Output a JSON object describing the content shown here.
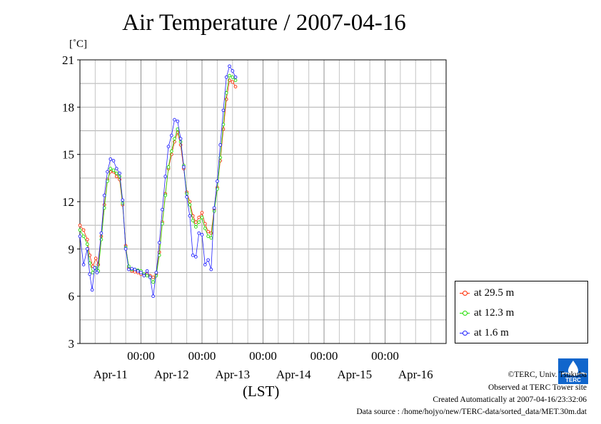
{
  "title": "Air Temperature / 2007-04-16",
  "unit_label": "[˚C]",
  "x_axis_label": "(LST)",
  "legend": [
    {
      "label": "at 29.5 m",
      "color": "#ff2a00"
    },
    {
      "label": "at 12.3 m",
      "color": "#22dd00"
    },
    {
      "label": "at 1.6 m",
      "color": "#2222ff"
    }
  ],
  "footer": {
    "copyright": "©TERC, Univ. Tsukuba",
    "observed": "Observed at TERC Tower site",
    "created": "Created Automatically at 2007-04-16/23:32:06",
    "source": "Data source : /home/hojyo/new/TERC-data/sorted_data/MET.30m.dat"
  },
  "logo_text": "TERC",
  "chart_data": {
    "type": "line",
    "title": "Air Temperature / 2007-04-16",
    "ylabel": "[˚C]",
    "xlabel": "(LST)",
    "ylim": [
      3,
      21
    ],
    "y_ticks": [
      3,
      6,
      9,
      12,
      15,
      18,
      21
    ],
    "xlim": [
      -1.0,
      5.0
    ],
    "x_unit": "days from 2007-04-11 00:00",
    "time_ticks": [
      "00:00",
      "00:00",
      "00:00",
      "00:00",
      "00:00"
    ],
    "date_labels": [
      "Apr-11",
      "Apr-12",
      "Apr-13",
      "Apr-14",
      "Apr-15",
      "Apr-16"
    ],
    "grid": true,
    "legend_position": "right",
    "series": [
      {
        "name": "at 29.5 m",
        "color": "#ff2a00",
        "points": [
          [
            -1.0,
            10.5
          ],
          [
            -0.94,
            10.2
          ],
          [
            -0.88,
            9.6
          ],
          [
            -0.84,
            8.6
          ],
          [
            -0.79,
            7.9
          ],
          [
            -0.74,
            8.4
          ],
          [
            -0.7,
            8.0
          ],
          [
            -0.65,
            9.8
          ],
          [
            -0.6,
            11.8
          ],
          [
            -0.55,
            13.4
          ],
          [
            -0.5,
            13.9
          ],
          [
            -0.45,
            13.9
          ],
          [
            -0.4,
            13.6
          ],
          [
            -0.35,
            13.4
          ],
          [
            -0.3,
            11.8
          ],
          [
            -0.25,
            9.2
          ],
          [
            -0.2,
            7.8
          ],
          [
            -0.15,
            7.6
          ],
          [
            -0.1,
            7.55
          ],
          [
            -0.05,
            7.5
          ],
          [
            0.0,
            7.4
          ],
          [
            0.05,
            7.3
          ],
          [
            0.1,
            7.4
          ],
          [
            0.15,
            7.3
          ],
          [
            0.2,
            7.2
          ],
          [
            0.25,
            7.4
          ],
          [
            0.3,
            8.8
          ],
          [
            0.35,
            10.7
          ],
          [
            0.4,
            12.5
          ],
          [
            0.45,
            14.1
          ],
          [
            0.5,
            15.0
          ],
          [
            0.55,
            15.8
          ],
          [
            0.6,
            16.4
          ],
          [
            0.65,
            15.6
          ],
          [
            0.7,
            14.1
          ],
          [
            0.75,
            12.6
          ],
          [
            0.8,
            12.0
          ],
          [
            0.85,
            11.1
          ],
          [
            0.9,
            10.7
          ],
          [
            0.95,
            11.0
          ],
          [
            1.0,
            11.3
          ],
          [
            1.05,
            10.6
          ],
          [
            1.1,
            10.1
          ],
          [
            1.15,
            10.0
          ],
          [
            1.2,
            11.5
          ],
          [
            1.25,
            12.9
          ],
          [
            1.3,
            14.6
          ],
          [
            1.35,
            16.6
          ],
          [
            1.4,
            18.5
          ],
          [
            1.45,
            19.7
          ],
          [
            1.5,
            19.6
          ],
          [
            1.55,
            19.3
          ]
        ]
      },
      {
        "name": "at 12.3 m",
        "color": "#22dd00",
        "points": [
          [
            -1.0,
            10.2
          ],
          [
            -0.94,
            9.8
          ],
          [
            -0.88,
            9.3
          ],
          [
            -0.84,
            8.1
          ],
          [
            -0.79,
            7.5
          ],
          [
            -0.74,
            7.8
          ],
          [
            -0.7,
            7.6
          ],
          [
            -0.65,
            9.6
          ],
          [
            -0.6,
            11.6
          ],
          [
            -0.55,
            13.3
          ],
          [
            -0.5,
            14.1
          ],
          [
            -0.45,
            14.0
          ],
          [
            -0.4,
            13.8
          ],
          [
            -0.35,
            13.6
          ],
          [
            -0.3,
            11.9
          ],
          [
            -0.25,
            9.1
          ],
          [
            -0.2,
            7.9
          ],
          [
            -0.15,
            7.7
          ],
          [
            -0.1,
            7.7
          ],
          [
            -0.05,
            7.65
          ],
          [
            0.0,
            7.6
          ],
          [
            0.05,
            7.4
          ],
          [
            0.1,
            7.3
          ],
          [
            0.15,
            7.2
          ],
          [
            0.2,
            6.9
          ],
          [
            0.25,
            7.3
          ],
          [
            0.3,
            8.6
          ],
          [
            0.35,
            10.6
          ],
          [
            0.4,
            12.4
          ],
          [
            0.45,
            14.2
          ],
          [
            0.5,
            15.2
          ],
          [
            0.55,
            16.0
          ],
          [
            0.6,
            16.6
          ],
          [
            0.65,
            15.8
          ],
          [
            0.7,
            14.3
          ],
          [
            0.75,
            12.5
          ],
          [
            0.8,
            11.8
          ],
          [
            0.85,
            10.8
          ],
          [
            0.9,
            10.4
          ],
          [
            0.95,
            10.7
          ],
          [
            1.0,
            11.0
          ],
          [
            1.05,
            10.3
          ],
          [
            1.1,
            9.8
          ],
          [
            1.15,
            9.7
          ],
          [
            1.2,
            11.4
          ],
          [
            1.25,
            12.8
          ],
          [
            1.3,
            14.8
          ],
          [
            1.35,
            16.9
          ],
          [
            1.4,
            18.9
          ],
          [
            1.45,
            20.0
          ],
          [
            1.5,
            19.9
          ],
          [
            1.55,
            19.7
          ]
        ]
      },
      {
        "name": "at 1.6 m",
        "color": "#2222ff",
        "points": [
          [
            -1.0,
            9.8
          ],
          [
            -0.94,
            8.0
          ],
          [
            -0.88,
            9.0
          ],
          [
            -0.84,
            7.4
          ],
          [
            -0.8,
            6.4
          ],
          [
            -0.76,
            7.8
          ],
          [
            -0.72,
            7.5
          ],
          [
            -0.65,
            10.0
          ],
          [
            -0.6,
            12.4
          ],
          [
            -0.55,
            13.9
          ],
          [
            -0.5,
            14.7
          ],
          [
            -0.45,
            14.6
          ],
          [
            -0.4,
            14.1
          ],
          [
            -0.35,
            13.8
          ],
          [
            -0.3,
            12.1
          ],
          [
            -0.25,
            9.0
          ],
          [
            -0.2,
            7.7
          ],
          [
            -0.15,
            7.75
          ],
          [
            -0.1,
            7.7
          ],
          [
            -0.05,
            7.6
          ],
          [
            0.0,
            7.5
          ],
          [
            0.05,
            7.3
          ],
          [
            0.1,
            7.6
          ],
          [
            0.15,
            7.2
          ],
          [
            0.2,
            6.0
          ],
          [
            0.25,
            7.5
          ],
          [
            0.3,
            9.4
          ],
          [
            0.35,
            11.5
          ],
          [
            0.4,
            13.6
          ],
          [
            0.45,
            15.5
          ],
          [
            0.5,
            16.2
          ],
          [
            0.55,
            17.2
          ],
          [
            0.6,
            17.1
          ],
          [
            0.65,
            16.0
          ],
          [
            0.7,
            14.2
          ],
          [
            0.75,
            12.3
          ],
          [
            0.8,
            11.1
          ],
          [
            0.85,
            8.6
          ],
          [
            0.9,
            8.5
          ],
          [
            0.95,
            10.0
          ],
          [
            1.0,
            9.9
          ],
          [
            1.05,
            8.0
          ],
          [
            1.1,
            8.3
          ],
          [
            1.15,
            7.7
          ],
          [
            1.2,
            11.6
          ],
          [
            1.25,
            13.3
          ],
          [
            1.3,
            15.6
          ],
          [
            1.35,
            17.8
          ],
          [
            1.4,
            19.9
          ],
          [
            1.45,
            20.6
          ],
          [
            1.5,
            20.3
          ],
          [
            1.55,
            19.9
          ]
        ]
      }
    ]
  }
}
